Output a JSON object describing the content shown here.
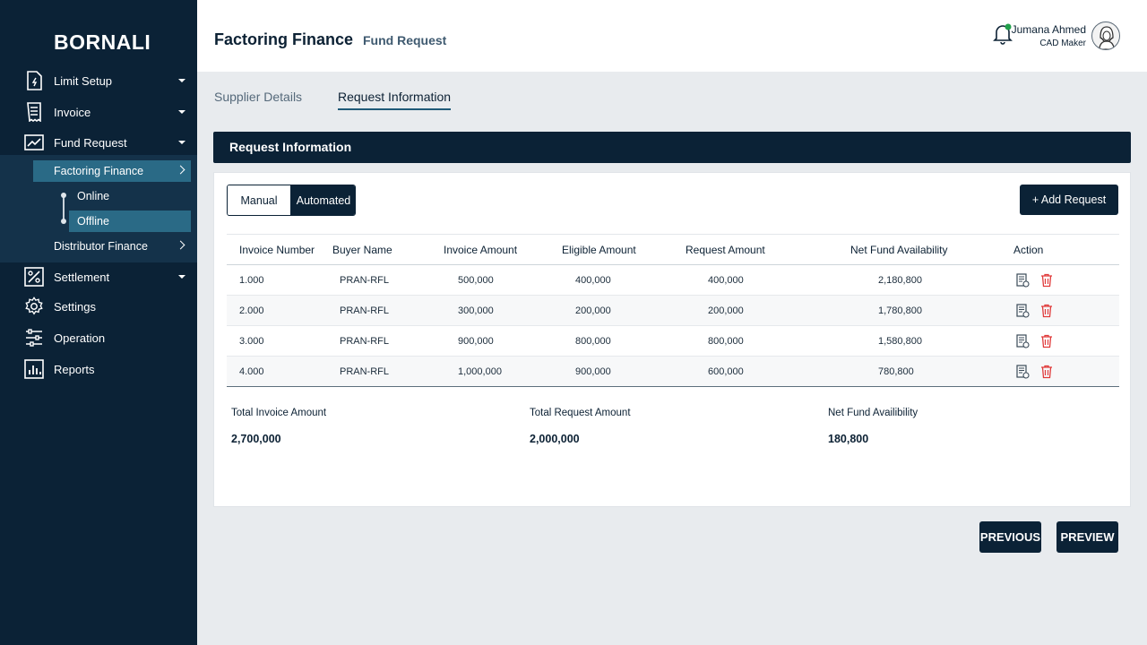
{
  "brand": "BORNALI",
  "sidebar": {
    "items": [
      {
        "label": "Limit Setup",
        "icon": "document-icon"
      },
      {
        "label": "Invoice",
        "icon": "receipt-icon"
      },
      {
        "label": "Fund Request",
        "icon": "chart-line-icon"
      },
      {
        "label": "Settlement",
        "icon": "percent-icon"
      },
      {
        "label": "Settings",
        "icon": "gear-icon"
      },
      {
        "label": "Operation",
        "icon": "sliders-icon"
      },
      {
        "label": "Reports",
        "icon": "bar-chart-icon"
      }
    ],
    "sub": {
      "factoring": "Factoring Finance",
      "online": "Online",
      "offline": "Offline",
      "distributor": "Distributor Finance"
    }
  },
  "header": {
    "title": "Factoring Finance",
    "subtitle": "Fund Request",
    "user_name": "Jumana Ahmed",
    "user_role": "CAD Maker"
  },
  "tabs": {
    "supplier": "Supplier Details",
    "request": "Request Information"
  },
  "section_title": "Request Information",
  "toggle": {
    "manual": "Manual",
    "automated": "Automated"
  },
  "add_request": "+ Add Request",
  "table": {
    "headers": [
      "Invoice Number",
      "Buyer Name",
      "Invoice Amount",
      "Eligible Amount",
      "Request Amount",
      "Net Fund Availability",
      "Action"
    ],
    "rows": [
      {
        "invoice": "1.000",
        "buyer": "PRAN-RFL",
        "amount": "500,000",
        "eligible": "400,000",
        "request": "400,000",
        "net": "2,180,800"
      },
      {
        "invoice": "2.000",
        "buyer": "PRAN-RFL",
        "amount": "300,000",
        "eligible": "200,000",
        "request": "200,000",
        "net": "1,780,800"
      },
      {
        "invoice": "3.000",
        "buyer": "PRAN-RFL",
        "amount": "900,000",
        "eligible": "800,000",
        "request": "800,000",
        "net": "1,580,800"
      },
      {
        "invoice": "4.000",
        "buyer": "PRAN-RFL",
        "amount": "1,000,000",
        "eligible": "900,000",
        "request": "600,000",
        "net": "780,800"
      }
    ]
  },
  "totals": {
    "invoice_label": "Total Invoice Amount",
    "invoice_value": "2,700,000",
    "request_label": "Total Request Amount",
    "request_value": "2,000,000",
    "net_label": "Net Fund Availibility",
    "net_value": "180,800"
  },
  "buttons": {
    "previous": "PREVIOUS",
    "preview": "PREVIEW"
  },
  "colors": {
    "navy": "#0b2236",
    "teal_active": "#2a6a86",
    "delete_red": "#e03a3a",
    "notification_green": "#22a04b"
  }
}
